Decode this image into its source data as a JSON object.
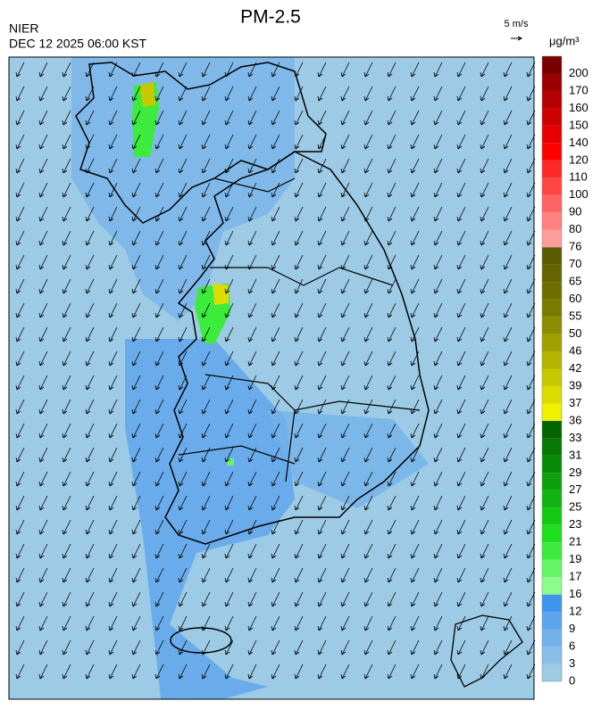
{
  "header": {
    "title": "PM-2.5",
    "agency": "NIER",
    "datetime": "DEC 12 2025 06:00 KST",
    "wind_scale": "5 m/s"
  },
  "legend": {
    "unit": "μg/m³",
    "ticks": [
      0,
      3,
      6,
      9,
      12,
      16,
      17,
      19,
      21,
      23,
      25,
      27,
      29,
      31,
      33,
      36,
      37,
      39,
      42,
      46,
      50,
      55,
      60,
      65,
      70,
      76,
      80,
      90,
      100,
      110,
      120,
      140,
      150,
      160,
      170,
      200
    ],
    "colors": [
      "#9dcbe6",
      "#88bee8",
      "#74b1ea",
      "#5ea4ec",
      "#3d95ef",
      "#8cfc8c",
      "#64f664",
      "#3ceb3c",
      "#1ede1e",
      "#14c814",
      "#10b410",
      "#0ca00c",
      "#088c08",
      "#067806",
      "#046404",
      "#f0f000",
      "#dcdc00",
      "#c8c800",
      "#b4b400",
      "#a0a000",
      "#8c8c00",
      "#7a7a00",
      "#6e6e00",
      "#646400",
      "#5a5a00",
      "#ff9c9c",
      "#ff8080",
      "#ff6464",
      "#ff4646",
      "#ff2828",
      "#ff0000",
      "#e60000",
      "#cc0000",
      "#b40000",
      "#9a0000",
      "#780000"
    ]
  }
}
